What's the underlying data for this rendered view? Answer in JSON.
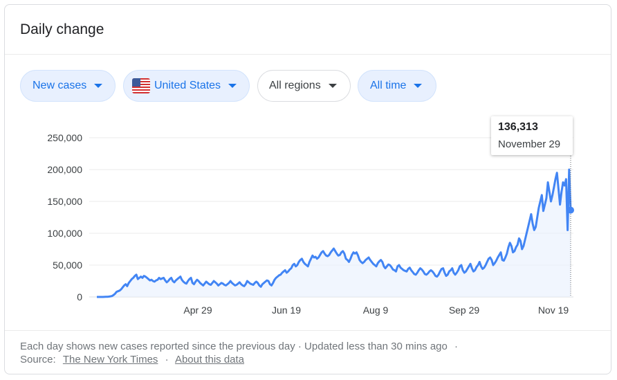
{
  "title": "Daily change",
  "filters": {
    "metric": "New cases",
    "location": "United States",
    "region": "All regions",
    "period": "All time"
  },
  "tooltip": {
    "value": "136,313",
    "date": "November 29"
  },
  "footer": {
    "note": "Each day shows new cases reported since the previous day · Updated less than 30 mins ago",
    "dot": "·",
    "source_label": "Source:",
    "source_link": "The New York Times",
    "sep": "·",
    "about_link": "About this data"
  },
  "colors": {
    "line": "#4285f4",
    "area": "#e8f0fe",
    "chip_blue_bg": "#e8f0fe",
    "chip_blue_text": "#1a73e8"
  },
  "chart_data": {
    "type": "area",
    "title": "",
    "xlabel": "",
    "ylabel": "",
    "ylim": [
      0,
      250000
    ],
    "yticks": [
      "250,000",
      "200,000",
      "150,000",
      "100,000",
      "50,000",
      "0"
    ],
    "xticks": [
      "Apr 29",
      "Jun 19",
      "Aug 9",
      "Sep 29",
      "Nov 19"
    ],
    "grid": true,
    "series": [
      {
        "values": [
          0,
          0,
          0,
          0,
          0,
          100,
          200,
          300,
          500,
          1000,
          1500,
          3000,
          5000,
          8000,
          9000,
          10000,
          12000,
          15000,
          18000,
          20000,
          17000,
          22000,
          25000,
          28000,
          30000,
          33000,
          35000,
          28000,
          30000,
          32000,
          30000,
          33000,
          32000,
          30000,
          28000,
          26000,
          27000,
          25000,
          24000,
          26000,
          27000,
          30000,
          28000,
          29000,
          30000,
          26000,
          23000,
          25000,
          28000,
          30000,
          25000,
          23000,
          26000,
          28000,
          30000,
          32000,
          27000,
          24000,
          22000,
          21000,
          25000,
          28000,
          30000,
          22000,
          20000,
          24000,
          27000,
          25000,
          22000,
          20000,
          18000,
          21000,
          24000,
          22000,
          20000,
          19000,
          22000,
          25000,
          23000,
          21000,
          18000,
          20000,
          22000,
          21000,
          19000,
          18000,
          20000,
          22000,
          25000,
          22000,
          20000,
          18000,
          19000,
          21000,
          23000,
          20000,
          18000,
          17000,
          20000,
          25000,
          23000,
          21000,
          20000,
          19000,
          22000,
          24000,
          22000,
          18000,
          16000,
          20000,
          22000,
          24000,
          26000,
          25000,
          20000,
          18000,
          22000,
          27000,
          30000,
          32000,
          34000,
          35000,
          38000,
          40000,
          42000,
          38000,
          40000,
          43000,
          45000,
          50000,
          52000,
          48000,
          50000,
          55000,
          58000,
          60000,
          55000,
          52000,
          50000,
          48000,
          55000,
          60000,
          65000,
          62000,
          63000,
          60000,
          62000,
          66000,
          70000,
          72000,
          68000,
          65000,
          64000,
          66000,
          70000,
          73000,
          76000,
          72000,
          68000,
          65000,
          66000,
          70000,
          72000,
          68000,
          60000,
          58000,
          55000,
          60000,
          66000,
          70000,
          68000,
          70000,
          65000,
          58000,
          55000,
          53000,
          55000,
          58000,
          60000,
          62000,
          58000,
          55000,
          52000,
          50000,
          48000,
          53000,
          56000,
          58000,
          55000,
          48000,
          45000,
          48000,
          51000,
          50000,
          47000,
          43000,
          42000,
          40000,
          48000,
          50000,
          46000,
          44000,
          42000,
          41000,
          40000,
          44000,
          46000,
          42000,
          39000,
          36000,
          35000,
          38000,
          42000,
          45000,
          43000,
          40000,
          36000,
          35000,
          37000,
          40000,
          42000,
          40000,
          37000,
          33000,
          32000,
          35000,
          40000,
          44000,
          45000,
          38000,
          33000,
          35000,
          40000,
          42000,
          45000,
          38000,
          35000,
          38000,
          42000,
          48000,
          50000,
          42000,
          38000,
          40000,
          44000,
          48000,
          52000,
          45000,
          40000,
          42000,
          47000,
          50000,
          55000,
          48000,
          44000,
          46000,
          50000,
          55000,
          60000,
          62000,
          58000,
          50000,
          53000,
          57000,
          62000,
          66000,
          70000,
          58000,
          57000,
          62000,
          68000,
          78000,
          85000,
          80000,
          70000,
          72000,
          78000,
          82000,
          92000,
          88000,
          75000,
          80000,
          90000,
          100000,
          110000,
          120000,
          130000,
          115000,
          105000,
          110000,
          125000,
          140000,
          150000,
          160000,
          135000,
          145000,
          155000,
          180000,
          165000,
          150000,
          160000,
          172000,
          185000,
          195000,
          170000,
          145000,
          165000,
          180000,
          175000,
          185000,
          105000,
          200000,
          136313
        ]
      }
    ]
  }
}
